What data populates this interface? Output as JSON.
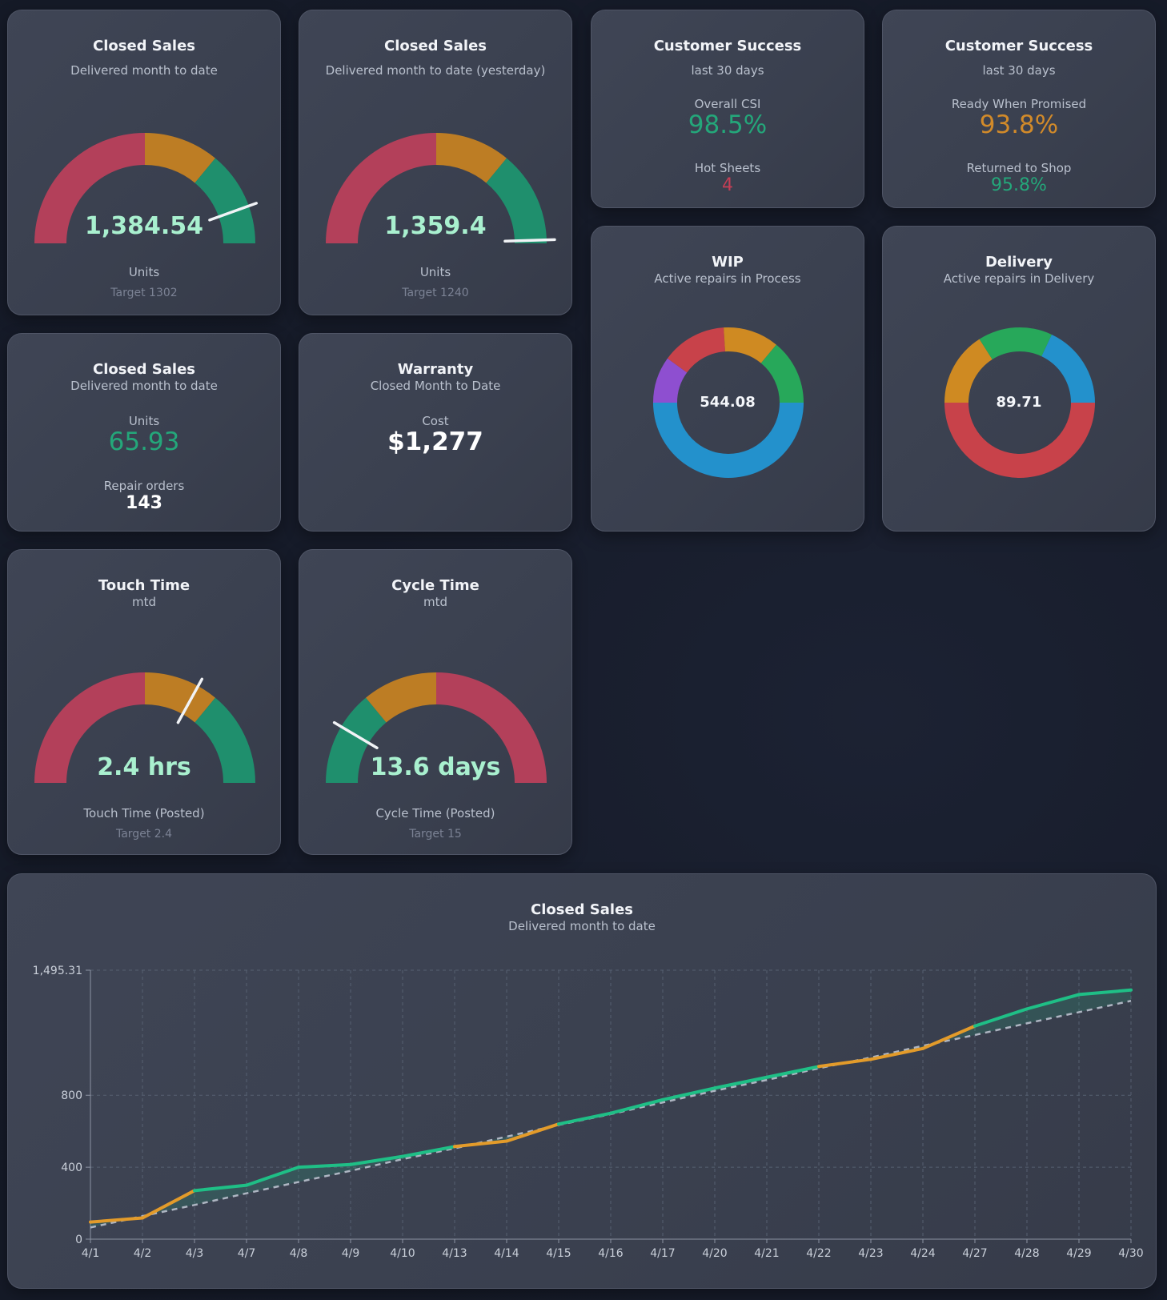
{
  "colors": {
    "red": "#b3405a",
    "orange": "#bd7d24",
    "green": "#1f8f6d",
    "value_mint": "#a9f0cf",
    "stat_green": "#24a77a",
    "stat_orange": "#d18a2a",
    "stat_red": "#c43e55",
    "line_green": "#1fbf86",
    "line_orange": "#e39b2a"
  },
  "cards": {
    "closed_sales_gauge": {
      "title": "Closed Sales",
      "subtitle": "Delivered month to date",
      "value": "1,384.54",
      "label": "Units",
      "target": "Target 1302",
      "needle_fraction": 0.89
    },
    "closed_sales_yesterday": {
      "title": "Closed Sales",
      "subtitle": "Delivered month to date (yesterday)",
      "value": "1,359.4",
      "label": "Units",
      "target": "Target 1240",
      "needle_fraction": 0.99
    },
    "csi": {
      "title": "Customer Success",
      "subtitle": "last 30 days",
      "label1": "Overall CSI",
      "value1": "98.5%",
      "label2": "Hot Sheets",
      "value2": "4"
    },
    "ready": {
      "title": "Customer Success",
      "subtitle": "last 30 days",
      "label1": "Ready When Promised",
      "value1": "93.8%",
      "label2": "Returned to Shop",
      "value2": "95.8%"
    },
    "wip": {
      "title": "WIP",
      "subtitle": "Active repairs in Process",
      "center": "544.08",
      "segments": [
        {
          "color": "#2391cc",
          "value": 0.5
        },
        {
          "color": "#8e4fd0",
          "value": 0.1
        },
        {
          "color": "#c8424a",
          "value": 0.14
        },
        {
          "color": "#cf8a22",
          "value": 0.12
        },
        {
          "color": "#27a85a",
          "value": 0.14
        }
      ]
    },
    "delivery": {
      "title": "Delivery",
      "subtitle": "Active repairs in Delivery",
      "center": "89.71",
      "segments": [
        {
          "color": "#c8424a",
          "value": 0.5
        },
        {
          "color": "#cf8a22",
          "value": 0.16
        },
        {
          "color": "#27a85a",
          "value": 0.16
        },
        {
          "color": "#2391cc",
          "value": 0.18
        }
      ]
    },
    "closed_sales_stats": {
      "title": "Closed Sales",
      "subtitle": "Delivered month to date",
      "label1": "Units",
      "value1": "65.93",
      "label2": "Repair orders",
      "value2": "143"
    },
    "warranty": {
      "title": "Warranty",
      "subtitle": "Closed Month to Date",
      "label": "Cost",
      "value": "$1,277"
    },
    "touch_time": {
      "title": "Touch Time",
      "subtitle": "mtd",
      "value": "2.4 hrs",
      "label": "Touch Time (Posted)",
      "target": "Target 2.4",
      "needle_fraction": 0.66
    },
    "cycle_time": {
      "title": "Cycle Time",
      "subtitle": "mtd",
      "value": "13.6 days",
      "label": "Cycle Time (Posted)",
      "target": "Target 15",
      "needle_fraction": 0.17
    }
  },
  "chart_title": "Closed Sales",
  "chart_subtitle": "Delivered month to date",
  "chart_data": {
    "type": "line",
    "categories": [
      "4/1",
      "4/2",
      "4/3",
      "4/7",
      "4/8",
      "4/9",
      "4/10",
      "4/13",
      "4/14",
      "4/15",
      "4/16",
      "4/17",
      "4/20",
      "4/21",
      "4/22",
      "4/23",
      "4/24",
      "4/27",
      "4/28",
      "4/29",
      "4/30"
    ],
    "series": [
      {
        "values": [
          95,
          118,
          270,
          300,
          400,
          415,
          460,
          515,
          545,
          640,
          700,
          775,
          840,
          900,
          960,
          1000,
          1060,
          1185,
          1280,
          1360,
          1385
        ]
      },
      {
        "values": [
          65,
          128,
          190,
          255,
          318,
          380,
          445,
          505,
          570,
          635,
          695,
          760,
          825,
          885,
          950,
          1010,
          1075,
          1135,
          1200,
          1262,
          1325
        ],
        "style": "dashed"
      }
    ],
    "ylim": [
      0,
      1495.31
    ],
    "yticks": [
      "0",
      "400",
      "800",
      "1,495.31"
    ],
    "ytick_values": [
      0,
      400,
      800,
      1495.31
    ],
    "grid": true
  }
}
